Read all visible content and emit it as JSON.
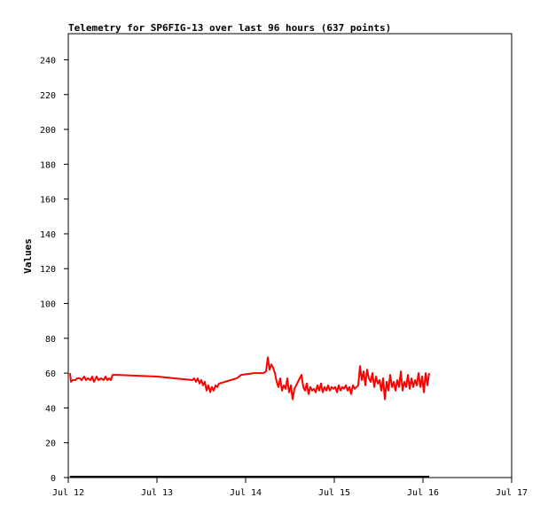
{
  "chart_data": {
    "type": "line",
    "title": "Telemetry for SP6FIG-13 over last 96 hours (637 points)",
    "xlabel": "",
    "ylabel": "Values",
    "xlim": [
      0,
      5
    ],
    "ylim": [
      0,
      255
    ],
    "x_tick_labels": [
      "Jul 12",
      "Jul 13",
      "Jul 14",
      "Jul 15",
      "Jul 16",
      "Jul 17"
    ],
    "y_ticks": [
      0,
      20,
      40,
      60,
      80,
      100,
      120,
      140,
      160,
      180,
      200,
      220,
      240
    ],
    "grid": false,
    "legend": "none",
    "series": [
      {
        "color": "#ff0000",
        "x": [
          0.02,
          0.03,
          0.05,
          0.08,
          0.1,
          0.13,
          0.15,
          0.18,
          0.2,
          0.22,
          0.25,
          0.27,
          0.29,
          0.32,
          0.34,
          0.37,
          0.4,
          0.42,
          0.44,
          0.46,
          0.48,
          0.5,
          0.52,
          0.55,
          1.0,
          1.4,
          1.42,
          1.44,
          1.46,
          1.48,
          1.5,
          1.52,
          1.54,
          1.56,
          1.58,
          1.6,
          1.62,
          1.64,
          1.66,
          1.68,
          1.7,
          1.9,
          1.95,
          2.1,
          2.2,
          2.23,
          2.25,
          2.27,
          2.29,
          2.31,
          2.33,
          2.35,
          2.37,
          2.39,
          2.41,
          2.43,
          2.45,
          2.47,
          2.49,
          2.51,
          2.53,
          2.55,
          2.57,
          2.59,
          2.61,
          2.63,
          2.65,
          2.67,
          2.69,
          2.71,
          2.73,
          2.75,
          2.77,
          2.79,
          2.81,
          2.83,
          2.85,
          2.87,
          2.89,
          2.91,
          2.93,
          2.95,
          2.97,
          2.99,
          3.01,
          3.03,
          3.05,
          3.07,
          3.09,
          3.11,
          3.13,
          3.15,
          3.17,
          3.19,
          3.21,
          3.23,
          3.25,
          3.27,
          3.29,
          3.31,
          3.33,
          3.35,
          3.37,
          3.39,
          3.41,
          3.43,
          3.45,
          3.47,
          3.49,
          3.51,
          3.53,
          3.55,
          3.57,
          3.59,
          3.61,
          3.63,
          3.65,
          3.67,
          3.69,
          3.71,
          3.73,
          3.75,
          3.77,
          3.79,
          3.81,
          3.83,
          3.85,
          3.87,
          3.89,
          3.91,
          3.93,
          3.95,
          3.97,
          3.99,
          4.01,
          4.03,
          4.05,
          4.07
        ],
        "y": [
          60,
          55,
          56,
          56,
          57,
          57,
          56,
          58,
          56,
          57,
          56,
          58,
          55,
          58,
          56,
          57,
          56,
          58,
          56,
          57,
          56,
          59,
          59,
          59,
          58,
          56,
          57,
          55,
          57,
          54,
          56,
          53,
          55,
          50,
          53,
          49,
          52,
          50,
          53,
          52,
          54,
          57,
          59,
          60,
          60,
          61,
          69,
          62,
          65,
          63,
          60,
          55,
          52,
          57,
          50,
          53,
          51,
          57,
          49,
          53,
          45,
          51,
          53,
          55,
          57,
          59,
          52,
          50,
          54,
          48,
          52,
          50,
          51,
          49,
          53,
          50,
          54,
          49,
          52,
          50,
          53,
          50,
          52,
          51,
          52,
          49,
          53,
          50,
          52,
          51,
          53,
          50,
          52,
          48,
          53,
          51,
          52,
          53,
          64,
          56,
          61,
          53,
          62,
          57,
          55,
          60,
          52,
          58,
          54,
          56,
          50,
          57,
          45,
          55,
          50,
          59,
          52,
          55,
          50,
          56,
          52,
          61,
          50,
          55,
          52,
          59,
          51,
          57,
          52,
          56,
          53,
          60,
          52,
          58,
          49,
          60,
          53,
          60
        ]
      }
    ]
  }
}
